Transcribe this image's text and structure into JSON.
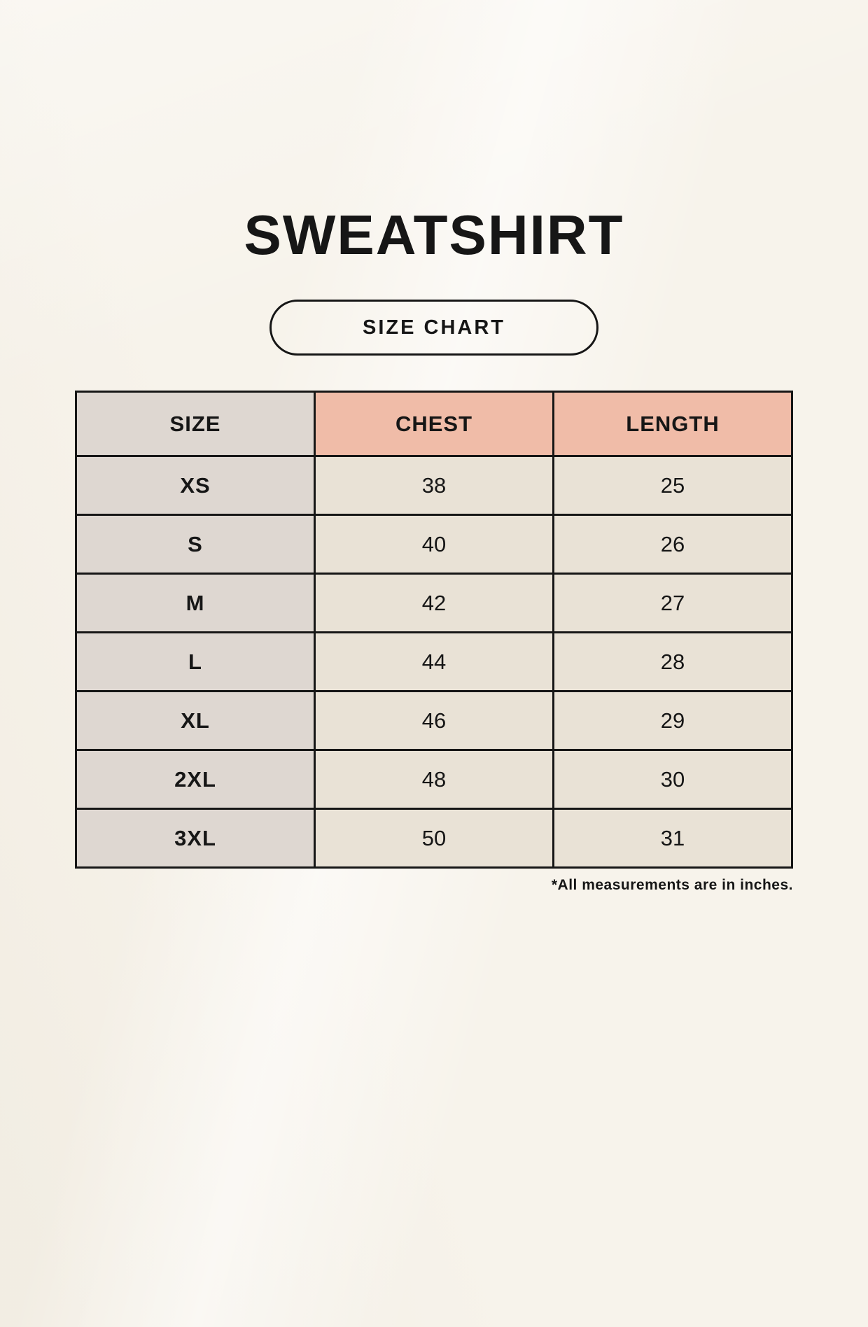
{
  "header": {
    "title": "SWEATSHIRT",
    "badge_label": "SIZE CHART"
  },
  "chart_data": {
    "type": "table",
    "title": "SWEATSHIRT SIZE CHART",
    "columns": [
      "SIZE",
      "CHEST",
      "LENGTH"
    ],
    "rows": [
      [
        "XS",
        "38",
        "25"
      ],
      [
        "S",
        "40",
        "26"
      ],
      [
        "M",
        "42",
        "27"
      ],
      [
        "L",
        "44",
        "28"
      ],
      [
        "XL",
        "46",
        "29"
      ],
      [
        "2XL",
        "48",
        "30"
      ],
      [
        "3XL",
        "50",
        "31"
      ]
    ],
    "units": "inches"
  },
  "footnote": "*All measurements are in inches.",
  "colors": {
    "background": "#F7F3EB",
    "header_accent": "#F0BCA8",
    "size_column": "#DED7D1",
    "cell": "#E9E2D6",
    "border": "#161616",
    "text": "#161616"
  }
}
